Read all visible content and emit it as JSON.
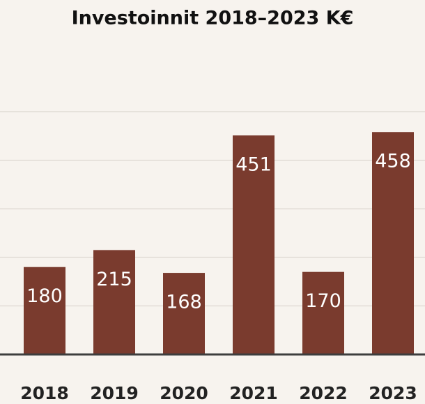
{
  "chart_data": {
    "type": "bar",
    "title": "Investoinnit 2018–2023 K€",
    "categories": [
      "2018",
      "2019",
      "2020",
      "2021",
      "2022",
      "2023"
    ],
    "values": [
      180,
      215,
      168,
      451,
      170,
      458
    ],
    "color": "#7a3b2e",
    "ylim": [
      0,
      500
    ],
    "yticks": [
      0,
      100,
      200,
      300,
      400,
      500
    ],
    "grid": true
  }
}
